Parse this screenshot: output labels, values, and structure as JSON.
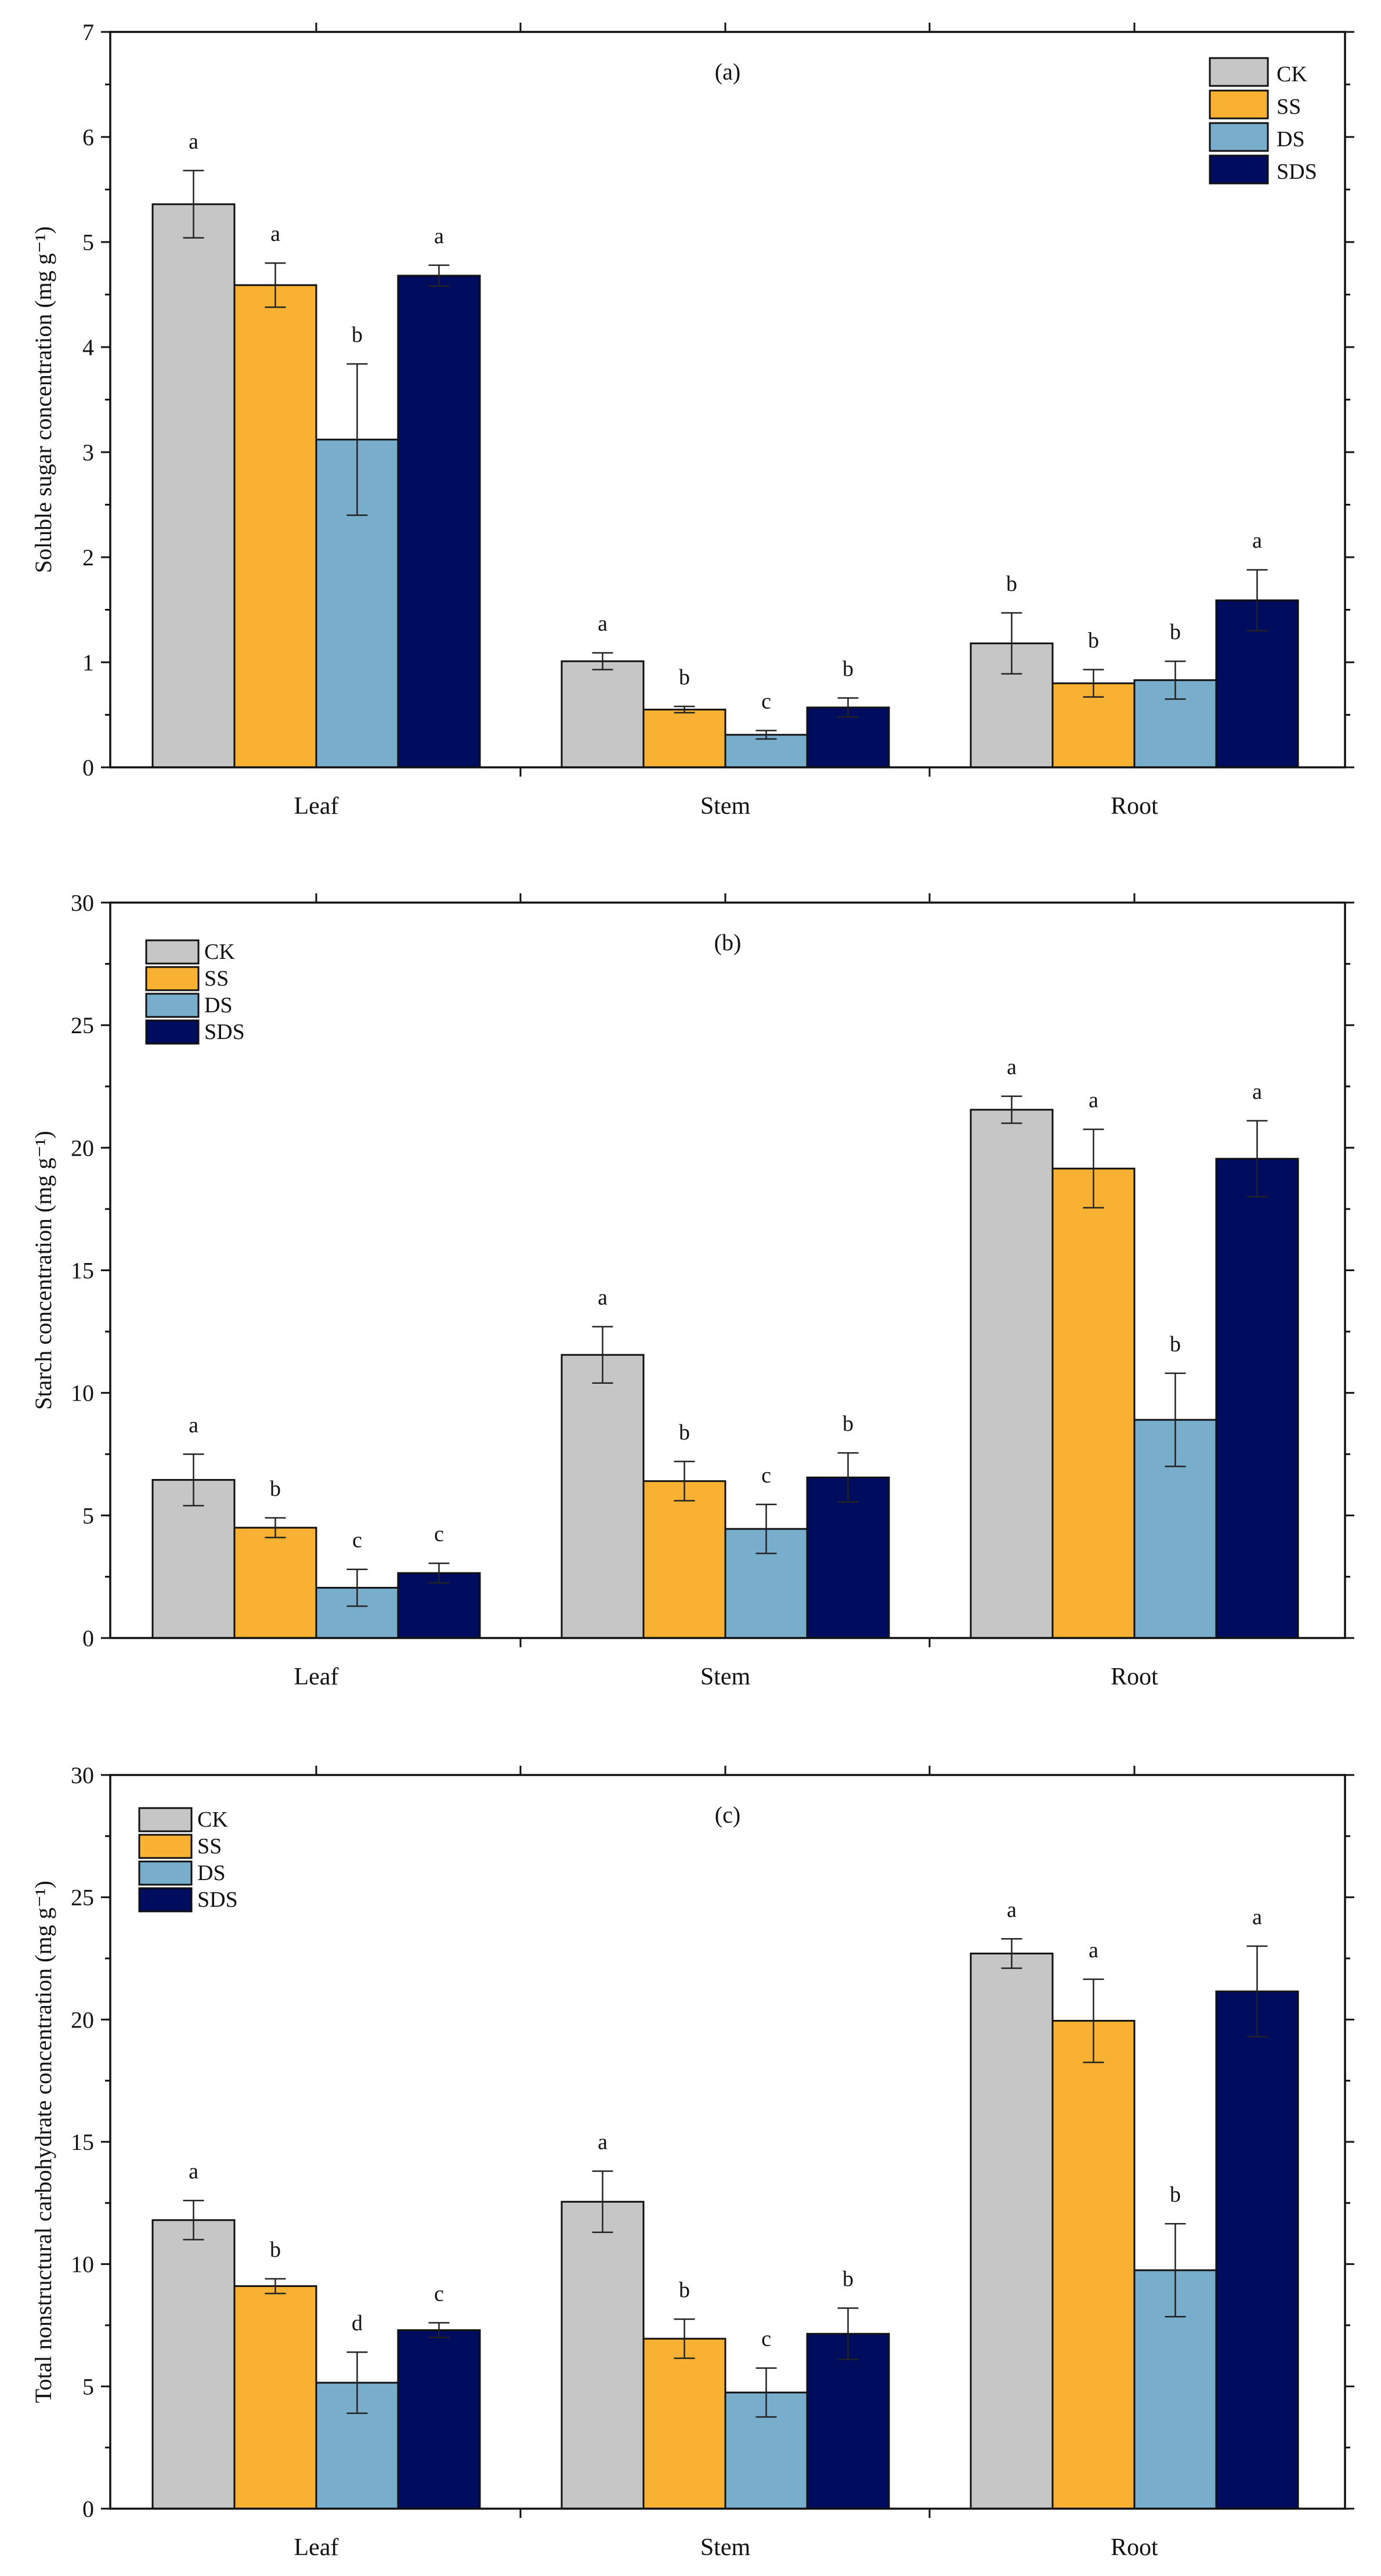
{
  "colors": {
    "CK": "#c6c6c6",
    "SS": "#f8b133",
    "DS": "#79adcc",
    "SDS": "#000c5e"
  },
  "chart_data": [
    {
      "type": "bar",
      "panel_label": "(a)",
      "title": "",
      "xlabel": "",
      "ylabel": "Soluble sugar concentration (mg g⁻¹)",
      "ylim": [
        0,
        7
      ],
      "yticks": [
        0,
        1,
        2,
        3,
        4,
        5,
        6,
        7
      ],
      "categories": [
        "Leaf",
        "Stem",
        "Root"
      ],
      "legend_position": "top-right",
      "series": [
        {
          "name": "CK",
          "values": [
            5.36,
            1.01,
            1.18
          ],
          "errors": [
            0.32,
            0.08,
            0.29
          ],
          "letters": [
            "a",
            "a",
            "b"
          ]
        },
        {
          "name": "SS",
          "values": [
            4.59,
            0.55,
            0.8
          ],
          "errors": [
            0.21,
            0.03,
            0.13
          ],
          "letters": [
            "a",
            "b",
            "b"
          ]
        },
        {
          "name": "DS",
          "values": [
            3.12,
            0.31,
            0.83
          ],
          "errors": [
            0.72,
            0.04,
            0.18
          ],
          "letters": [
            "b",
            "c",
            "b"
          ]
        },
        {
          "name": "SDS",
          "values": [
            4.68,
            0.57,
            1.59
          ],
          "errors": [
            0.1,
            0.09,
            0.29
          ],
          "letters": [
            "a",
            "b",
            "a"
          ]
        }
      ]
    },
    {
      "type": "bar",
      "panel_label": "(b)",
      "title": "",
      "xlabel": "",
      "ylabel": "Starch  concentration (mg g⁻¹)",
      "ylim": [
        0,
        30
      ],
      "yticks": [
        0,
        5,
        10,
        15,
        20,
        25,
        30
      ],
      "categories": [
        "Leaf",
        "Stem",
        "Root"
      ],
      "legend_position": "top-left",
      "series": [
        {
          "name": "CK",
          "values": [
            6.45,
            11.55,
            21.55
          ],
          "errors": [
            1.05,
            1.15,
            0.55
          ],
          "letters": [
            "a",
            "a",
            "a"
          ]
        },
        {
          "name": "SS",
          "values": [
            4.5,
            6.4,
            19.15
          ],
          "errors": [
            0.4,
            0.8,
            1.6
          ],
          "letters": [
            "b",
            "b",
            "a"
          ]
        },
        {
          "name": "DS",
          "values": [
            2.05,
            4.45,
            8.9
          ],
          "errors": [
            0.75,
            1.0,
            1.9
          ],
          "letters": [
            "c",
            "c",
            "b"
          ]
        },
        {
          "name": "SDS",
          "values": [
            2.65,
            6.55,
            19.55
          ],
          "errors": [
            0.4,
            1.0,
            1.55
          ],
          "letters": [
            "c",
            "b",
            "a"
          ]
        }
      ]
    },
    {
      "type": "bar",
      "panel_label": "(c)",
      "title": "",
      "xlabel": "",
      "ylabel": "Total nonstructural carbohydrate  concentration (mg g⁻¹)",
      "ylim": [
        0,
        30
      ],
      "yticks": [
        0,
        5,
        10,
        15,
        20,
        25,
        30
      ],
      "categories": [
        "Leaf",
        "Stem",
        "Root"
      ],
      "legend_position": "top-left",
      "series": [
        {
          "name": "CK",
          "values": [
            11.8,
            12.55,
            22.7
          ],
          "errors": [
            0.8,
            1.25,
            0.6
          ],
          "letters": [
            "a",
            "a",
            "a"
          ]
        },
        {
          "name": "SS",
          "values": [
            9.1,
            6.95,
            19.95
          ],
          "errors": [
            0.3,
            0.8,
            1.7
          ],
          "letters": [
            "b",
            "b",
            "a"
          ]
        },
        {
          "name": "DS",
          "values": [
            5.15,
            4.75,
            9.75
          ],
          "errors": [
            1.25,
            1.0,
            1.9
          ],
          "letters": [
            "d",
            "c",
            "b"
          ]
        },
        {
          "name": "SDS",
          "values": [
            7.3,
            7.15,
            21.15
          ],
          "errors": [
            0.3,
            1.05,
            1.85
          ],
          "letters": [
            "c",
            "b",
            "a"
          ]
        }
      ]
    }
  ]
}
